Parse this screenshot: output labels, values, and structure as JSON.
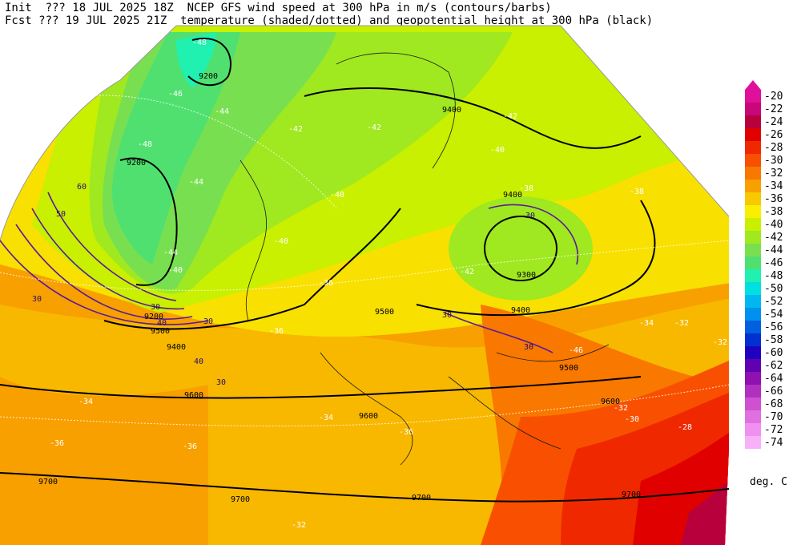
{
  "header": {
    "line1": "Init  ??? 18 JUL 2025 18Z  NCEP GFS wind speed at 300 hPa in m/s (contours/barbs)",
    "line2": "Fcst ??? 19 JUL 2025 21Z  temperature (shaded/dotted) and geopotential height at 300 hPa (black)"
  },
  "legend": {
    "units": "deg. C",
    "entries": [
      {
        "label": "-20",
        "color": "#e0109a"
      },
      {
        "label": "-22",
        "color": "#c8087a"
      },
      {
        "label": "-24",
        "color": "#b8003c"
      },
      {
        "label": "-26",
        "color": "#e00000"
      },
      {
        "label": "-28",
        "color": "#f02800"
      },
      {
        "label": "-30",
        "color": "#f85000"
      },
      {
        "label": "-32",
        "color": "#f87800"
      },
      {
        "label": "-34",
        "color": "#f8a000"
      },
      {
        "label": "-36",
        "color": "#f8c800"
      },
      {
        "label": "-38",
        "color": "#f8f000"
      },
      {
        "label": "-40",
        "color": "#c8f000"
      },
      {
        "label": "-42",
        "color": "#a0e820"
      },
      {
        "label": "-44",
        "color": "#78e050"
      },
      {
        "label": "-46",
        "color": "#50e070"
      },
      {
        "label": "-48",
        "color": "#20f0b0"
      },
      {
        "label": "-50",
        "color": "#00e0e0"
      },
      {
        "label": "-52",
        "color": "#00b8f0"
      },
      {
        "label": "-54",
        "color": "#0090f0"
      },
      {
        "label": "-56",
        "color": "#0060e0"
      },
      {
        "label": "-58",
        "color": "#0030d0"
      },
      {
        "label": "-60",
        "color": "#2000c0"
      },
      {
        "label": "-62",
        "color": "#6000b0"
      },
      {
        "label": "-64",
        "color": "#9010b0"
      },
      {
        "label": "-66",
        "color": "#b030c0"
      },
      {
        "label": "-68",
        "color": "#d050d0"
      },
      {
        "label": "-70",
        "color": "#e070e0"
      },
      {
        "label": "-72",
        "color": "#f090f0"
      },
      {
        "label": "-74",
        "color": "#f8b0f8"
      }
    ]
  },
  "map_labels": {
    "height": [
      "9200",
      "9200",
      "9200",
      "9400",
      "9400",
      "9300",
      "9400",
      "9500",
      "9500",
      "9600",
      "9600",
      "9600",
      "9700",
      "9700",
      "9700",
      "9700",
      "9500",
      "9400"
    ],
    "wind": [
      "30",
      "30",
      "30",
      "30",
      "30",
      "40",
      "50",
      "60",
      "30",
      "30",
      "40"
    ],
    "temperature": [
      "-48",
      "-46",
      "-44",
      "-48",
      "-44",
      "-42",
      "-42",
      "-40",
      "-40",
      "-42",
      "-38",
      "-38",
      "-42",
      "-36",
      "-36",
      "-34",
      "-34",
      "-32",
      "-32",
      "-32",
      "-30",
      "-28",
      "-36",
      "-36",
      "-34",
      "-36",
      "-32",
      "-46",
      "-44",
      "-40",
      "-40"
    ]
  }
}
